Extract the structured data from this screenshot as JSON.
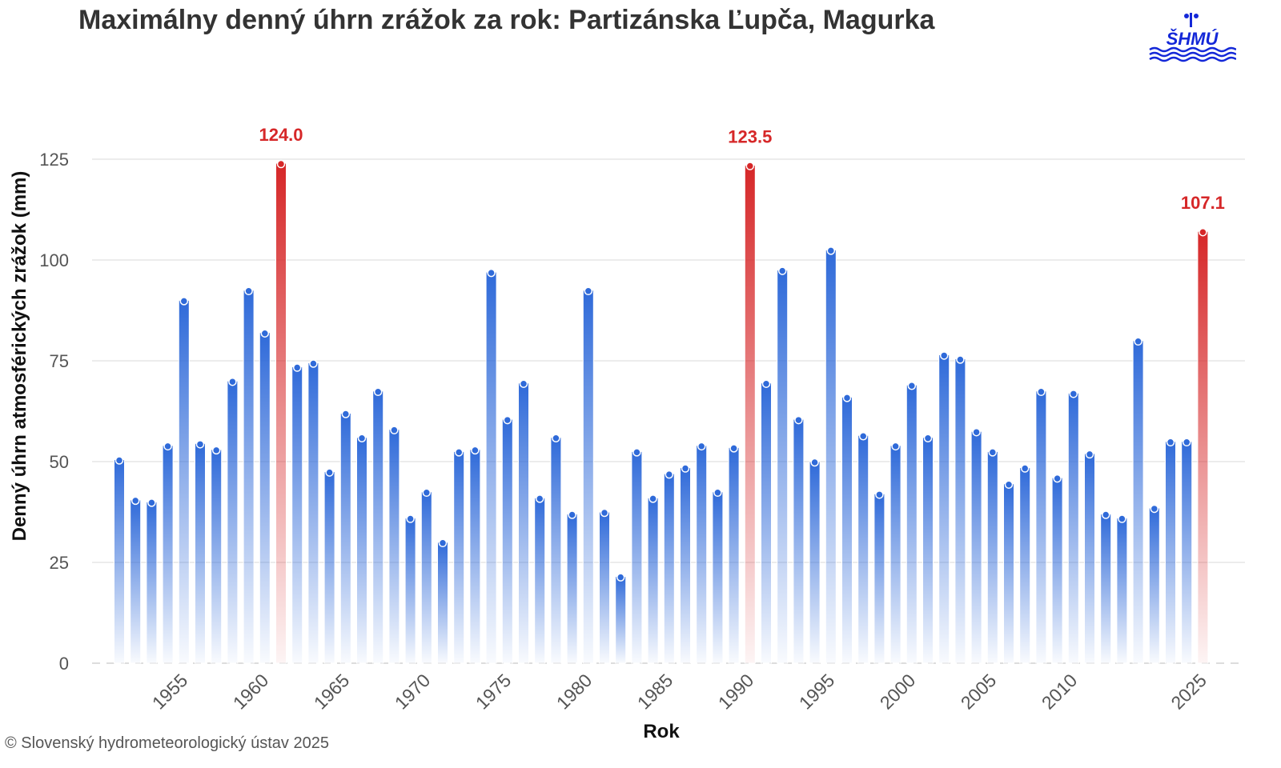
{
  "title": "Maximálny denný úhrn zrážok za rok: Partizánska Ľupča, Magurka",
  "logo_text": "SHMÚ",
  "copyright": "© Slovenský hydrometeorologický ústav 2025",
  "colors": {
    "normal": "#2f6ad9",
    "highlight": "#d62728",
    "label": "#d62728"
  },
  "chart_data": {
    "type": "bar",
    "title": "Maximálny denný úhrn zrážok za rok: Partizánska Ľupča, Magurka",
    "xlabel": "Rok",
    "ylabel": "Denný úhrn atmosférických zrážok (mm)",
    "ylim": [
      0,
      130
    ],
    "yticks": [
      0,
      25,
      50,
      75,
      100,
      125
    ],
    "grid": true,
    "xtick_labels": [
      "1955",
      "1960",
      "1965",
      "1970",
      "1975",
      "1980",
      "1985",
      "1990",
      "1995",
      "2000",
      "2005",
      "2010",
      "2025"
    ],
    "categories": [
      "1951",
      "1952",
      "1953",
      "1954",
      "1955",
      "1956",
      "1957",
      "1958",
      "1959",
      "1960",
      "1961",
      "1962",
      "1963",
      "1964",
      "1965",
      "1966",
      "1967",
      "1968",
      "1969",
      "1970",
      "1971",
      "1972",
      "1973",
      "1974",
      "1975",
      "1976",
      "1977",
      "1978",
      "1979",
      "1980",
      "1981",
      "1982",
      "1983",
      "1984",
      "1985",
      "1986",
      "1987",
      "1988",
      "1989",
      "1990",
      "1991",
      "1992",
      "1993",
      "1994",
      "1995",
      "1996",
      "1997",
      "1998",
      "1999",
      "2000",
      "2001",
      "2002",
      "2003",
      "2004",
      "2005",
      "2006",
      "2007",
      "2008",
      "2009",
      "2010",
      "2011",
      "2012",
      "2013",
      "2014",
      "2016",
      "2017",
      "2018",
      "2025"
    ],
    "values": [
      50.5,
      40.5,
      40.0,
      54.0,
      90.0,
      54.5,
      53.0,
      70.0,
      92.5,
      82.0,
      124.0,
      73.5,
      74.5,
      47.5,
      62.0,
      56.0,
      67.5,
      58.0,
      36.0,
      42.5,
      30.0,
      52.5,
      53.0,
      97.0,
      60.5,
      69.5,
      41.0,
      56.0,
      37.0,
      92.5,
      37.5,
      21.5,
      52.5,
      41.0,
      47.0,
      48.5,
      54.0,
      42.5,
      53.5,
      123.5,
      69.5,
      97.5,
      60.5,
      50.0,
      102.5,
      66.0,
      56.5,
      42.0,
      54.0,
      69.0,
      56.0,
      76.5,
      75.5,
      57.5,
      52.5,
      44.5,
      48.5,
      67.5,
      46.0,
      67.0,
      52.0,
      37.0,
      36.0,
      80.0,
      38.5,
      55.0,
      55.0,
      107.1
    ],
    "highlighted": [
      {
        "category": "1961",
        "label": "124.0"
      },
      {
        "category": "1990",
        "label": "123.5"
      },
      {
        "category": "2025",
        "label": "107.1"
      }
    ]
  }
}
